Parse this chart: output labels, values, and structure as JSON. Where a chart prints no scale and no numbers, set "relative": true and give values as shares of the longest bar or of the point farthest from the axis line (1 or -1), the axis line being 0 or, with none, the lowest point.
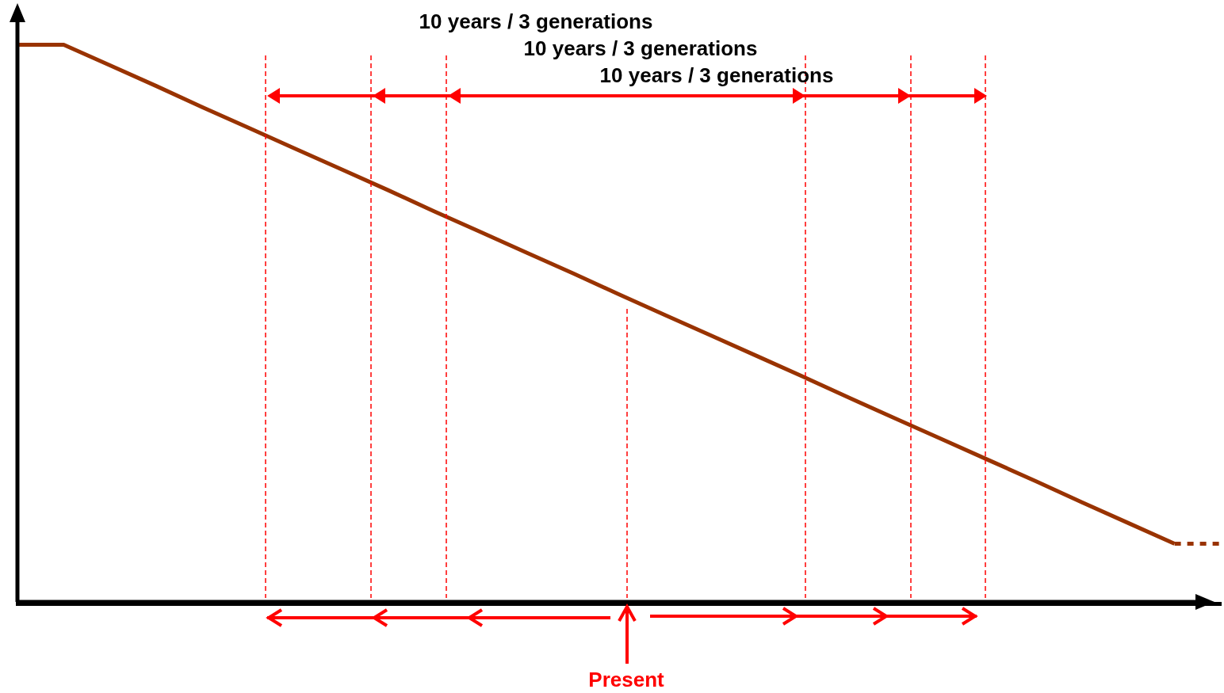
{
  "chart_data": {
    "type": "line",
    "relative": true,
    "legend": false,
    "grid": false,
    "categories": [
      null,
      null,
      null,
      null,
      null,
      null,
      null,
      null,
      null,
      null,
      null,
      null,
      null,
      null,
      null,
      null,
      null,
      null,
      null,
      null,
      null,
      null,
      null,
      null,
      null,
      null,
      null
    ],
    "series": [
      {
        "color": "#993300",
        "line_style": "solid",
        "values": [
          1,
          1,
          0.963,
          0.926,
          0.888,
          0.851,
          0.814,
          0.777,
          0.74,
          0.702,
          0.665,
          0.628,
          0.591,
          0.553,
          0.516,
          0.479,
          0.442,
          0.405,
          0.367,
          0.33,
          0.293,
          0.256,
          0.219,
          0.181,
          0.144,
          0.107,
          null
        ]
      },
      {
        "color": "#993300",
        "line_style": "dotted",
        "values": [
          null,
          null,
          null,
          null,
          null,
          null,
          null,
          null,
          null,
          null,
          null,
          null,
          null,
          null,
          null,
          null,
          null,
          null,
          null,
          null,
          null,
          null,
          null,
          null,
          null,
          0.107,
          0.107
        ]
      }
    ],
    "annotations": [
      "10 years / 3 generations",
      "10 years / 3 generations",
      "10 years / 3 generations",
      "Present"
    ]
  }
}
